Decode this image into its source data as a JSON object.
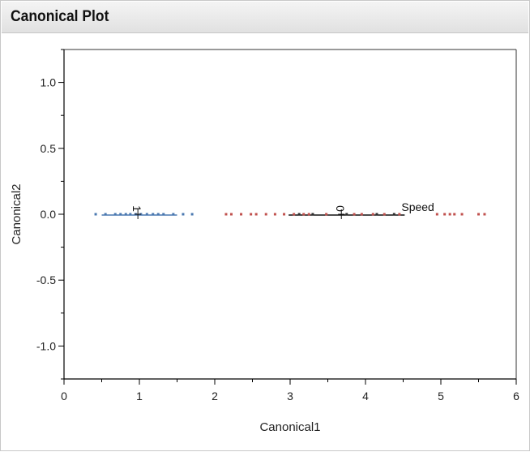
{
  "panel": {
    "title": "Canonical Plot"
  },
  "chart_data": {
    "type": "scatter",
    "title": "Canonical Plot",
    "xlabel": "Canonical1",
    "ylabel": "Canonical2",
    "xlim": [
      0,
      6
    ],
    "ylim": [
      -1.25,
      1.25
    ],
    "xticks": [
      "0",
      "1",
      "2",
      "3",
      "4",
      "5",
      "6"
    ],
    "yticks": [
      "-1.0",
      "-0.5",
      "0.0",
      "0.5",
      "1.0"
    ],
    "xtick_values": [
      0,
      1,
      2,
      3,
      4,
      5,
      6
    ],
    "ytick_values": [
      -1.0,
      -0.5,
      0.0,
      0.5,
      1.0
    ],
    "grid": false,
    "series": [
      {
        "color": "#4a78b0",
        "x": [
          0.42,
          0.55,
          0.68,
          0.75,
          0.82,
          0.88,
          0.95,
          1.02,
          1.1,
          1.18,
          1.25,
          1.32,
          1.45,
          1.58,
          1.7
        ]
      },
      {
        "color": "#c0504d",
        "x": [
          2.15,
          2.22,
          2.35,
          2.48,
          2.55,
          2.68,
          2.8,
          2.92,
          3.05,
          3.18,
          3.25,
          3.48,
          3.85,
          3.95,
          4.1,
          4.25,
          4.45,
          4.95,
          5.05,
          5.12,
          5.18,
          5.28,
          5.5,
          5.58
        ]
      },
      {
        "color": "#2f2f2f",
        "x": [
          3.12,
          3.3,
          3.75,
          4.15,
          4.38
        ]
      }
    ],
    "group_means": [
      {
        "label": "1",
        "x": 0.98,
        "y": 0.0,
        "line_x": [
          0.5,
          1.5
        ],
        "color": "#4a78b0"
      },
      {
        "label": "0",
        "x": 3.68,
        "y": 0.0,
        "line_x": [
          2.98,
          4.52
        ],
        "color": "#111111"
      }
    ],
    "biplot_rays": [
      {
        "label": "Speed",
        "x": 4.52,
        "y": 0.0
      }
    ]
  }
}
